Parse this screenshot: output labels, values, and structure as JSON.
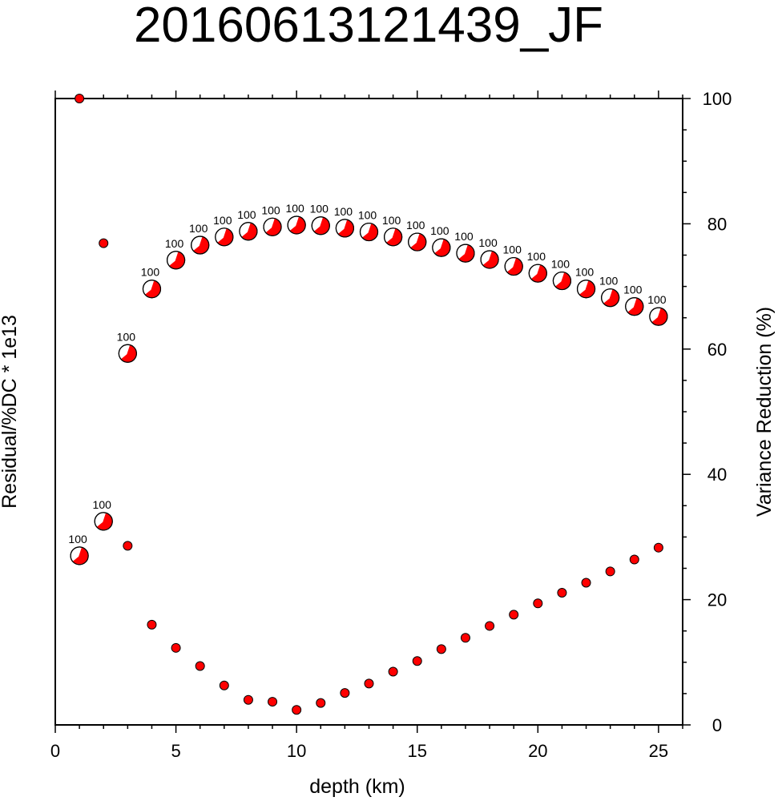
{
  "chart_data": {
    "type": "scatter",
    "title": "20160613121439_JF",
    "xlabel": "depth (km)",
    "ylabel_left": "Residual/%DC * 1e13",
    "ylabel_right": "Variance Reduction (%)",
    "xlim": [
      0,
      26
    ],
    "ylim_right": [
      0,
      100
    ],
    "x_ticks": [
      "0",
      "5",
      "10",
      "15",
      "20",
      "25"
    ],
    "y_ticks_right": [
      "0",
      "20",
      "40",
      "60",
      "80",
      "100"
    ],
    "grid": false,
    "series": [
      {
        "marker": "focal-mechanism-beachball",
        "x": [
          1,
          2,
          3,
          4,
          5,
          6,
          7,
          8,
          9,
          10,
          11,
          12,
          13,
          14,
          15,
          16,
          17,
          18,
          19,
          20,
          21,
          22,
          23,
          24,
          25
        ],
        "y": [
          27.0,
          32.5,
          59.3,
          69.6,
          74.2,
          76.6,
          77.9,
          78.8,
          79.5,
          79.8,
          79.7,
          79.3,
          78.7,
          77.9,
          77.1,
          76.2,
          75.3,
          74.3,
          73.2,
          72.1,
          70.9,
          69.6,
          68.2,
          66.8,
          65.2
        ],
        "labels": [
          "100",
          "100",
          "100",
          "100",
          "100",
          "100",
          "100",
          "100",
          "100",
          "100",
          "100",
          "100",
          "100",
          "100",
          "100",
          "100",
          "100",
          "100",
          "100",
          "100",
          "100",
          "100",
          "100",
          "100",
          "100"
        ]
      },
      {
        "marker": "dot",
        "x": [
          1,
          2,
          3,
          4,
          5,
          6,
          7,
          8,
          9,
          10,
          11,
          12,
          13,
          14,
          15,
          16,
          17,
          18,
          19,
          20,
          21,
          22,
          23,
          24,
          25
        ],
        "y": [
          100,
          76.9,
          28.6,
          16.0,
          12.3,
          9.4,
          6.3,
          4.0,
          3.7,
          2.4,
          3.5,
          5.1,
          6.6,
          8.5,
          10.2,
          12.1,
          13.9,
          15.8,
          17.6,
          19.4,
          21.1,
          22.7,
          24.5,
          26.4,
          28.3
        ]
      }
    ],
    "colors": {
      "fill": "#ff0000",
      "outline": "#000000"
    }
  }
}
